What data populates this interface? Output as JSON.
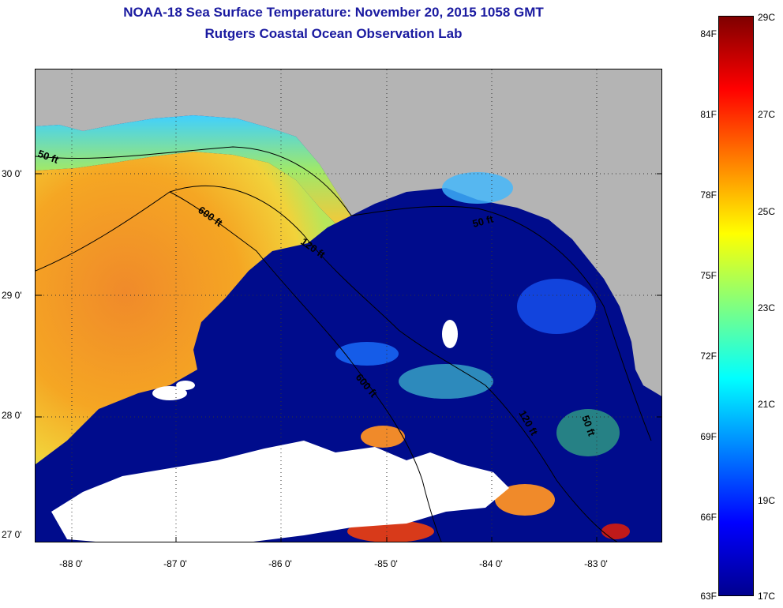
{
  "title": {
    "line1": "NOAA-18 Sea Surface Temperature:  November 20, 2015 1058 GMT",
    "line2": "Rutgers Coastal Ocean Observation Lab"
  },
  "map": {
    "latitude_labels": [
      "30 0'",
      "29 0'",
      "28 0'",
      "27 0'"
    ],
    "longitude_labels": [
      "-88 0'",
      "-87 0'",
      "-86 0'",
      "-85 0'",
      "-84 0'",
      "-83 0'"
    ],
    "contour_labels": [
      "50 ft",
      "600 ft",
      "120 ft",
      "50 ft",
      "600 ft",
      "120 ft",
      "50 ft"
    ],
    "colors": {
      "land": "#b4b4b4",
      "cloud": "#ffffff",
      "cold_water": "#000c8c",
      "warm_water": "#f5a623"
    }
  },
  "colorbar": {
    "fahrenheit_labels": [
      "84F",
      "81F",
      "78F",
      "75F",
      "72F",
      "69F",
      "66F",
      "63F"
    ],
    "celsius_labels": [
      "29C",
      "27C",
      "25C",
      "23C",
      "21C",
      "19C",
      "17C"
    ],
    "colors_top_to_bottom": [
      "#7f0000",
      "#ff0000",
      "#ff8000",
      "#ffff00",
      "#80ff80",
      "#00ffff",
      "#0080ff",
      "#0000ff",
      "#00008f"
    ]
  }
}
